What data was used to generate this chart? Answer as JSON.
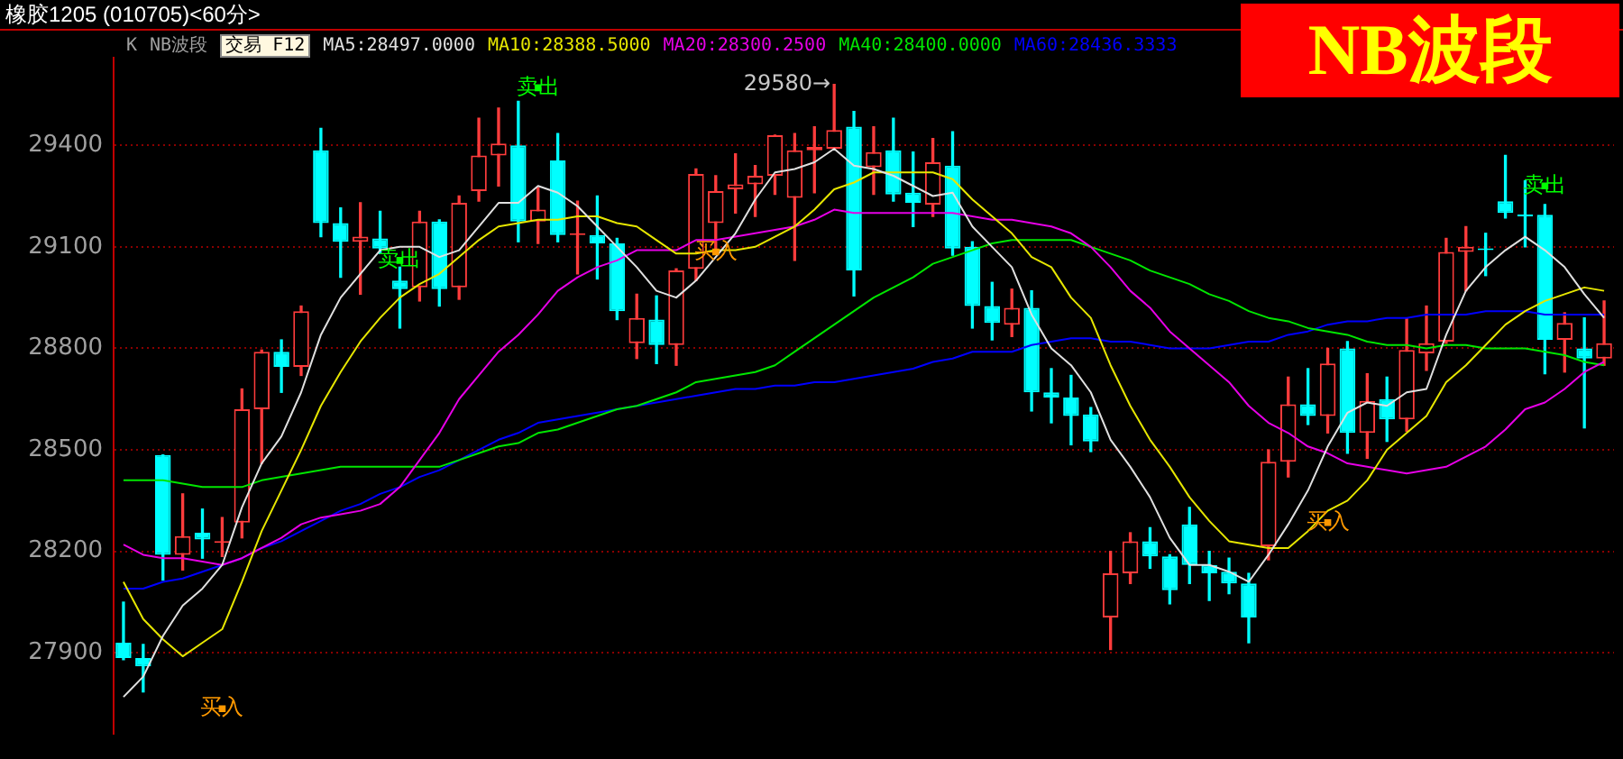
{
  "chart_data": {
    "type": "candlestick",
    "title": "橡胶1205 (010705)<60分>",
    "subtitle": "NB波段",
    "categories": [
      null,
      null,
      null,
      null,
      null,
      null,
      null,
      null,
      null,
      null,
      null,
      null,
      null,
      null,
      null,
      null,
      null,
      null,
      null,
      null,
      null,
      null,
      null,
      null,
      null,
      null,
      null,
      null,
      null,
      null,
      null,
      null,
      null,
      null,
      null,
      null,
      null,
      null,
      null,
      null,
      null,
      null,
      null,
      null,
      null,
      null,
      null,
      null,
      null,
      null,
      null,
      null,
      null,
      null,
      null,
      null,
      null,
      null,
      null,
      null,
      null,
      null,
      null,
      null,
      null,
      null,
      null,
      null,
      null,
      null,
      null,
      null,
      null,
      null,
      null,
      null
    ],
    "ohlc": [
      [
        27930,
        28050,
        27880,
        27885
      ],
      [
        27885,
        27925,
        27785,
        27860
      ],
      [
        28485,
        28485,
        28115,
        28190
      ],
      [
        28190,
        28370,
        28145,
        28245
      ],
      [
        28255,
        28325,
        28180,
        28235
      ],
      [
        28225,
        28300,
        28185,
        28230
      ],
      [
        28285,
        28680,
        28240,
        28620
      ],
      [
        28620,
        28795,
        28460,
        28790
      ],
      [
        28790,
        28825,
        28670,
        28745
      ],
      [
        28745,
        28925,
        28720,
        28910
      ],
      [
        29385,
        29450,
        29130,
        29170
      ],
      [
        29170,
        29215,
        29010,
        29115
      ],
      [
        29115,
        29230,
        28960,
        29130
      ],
      [
        29125,
        29205,
        29080,
        29095
      ],
      [
        29000,
        29040,
        28860,
        28975
      ],
      [
        28980,
        29205,
        28940,
        29175
      ],
      [
        29175,
        29180,
        28925,
        28975
      ],
      [
        28980,
        29250,
        28945,
        29230
      ],
      [
        29265,
        29480,
        29235,
        29370
      ],
      [
        29370,
        29510,
        29280,
        29405
      ],
      [
        29400,
        29530,
        29115,
        29175
      ],
      [
        29175,
        29275,
        29110,
        29210
      ],
      [
        29355,
        29435,
        29115,
        29135
      ],
      [
        29135,
        29235,
        29020,
        29140
      ],
      [
        29135,
        29250,
        29005,
        29110
      ],
      [
        29110,
        29125,
        28885,
        28910
      ],
      [
        28815,
        28960,
        28770,
        28890
      ],
      [
        28885,
        28955,
        28755,
        28810
      ],
      [
        28810,
        29035,
        28750,
        29030
      ],
      [
        29035,
        29330,
        29000,
        29315
      ],
      [
        29170,
        29310,
        29095,
        29265
      ],
      [
        29270,
        29375,
        29200,
        29285
      ],
      [
        29285,
        29340,
        29190,
        29310
      ],
      [
        29310,
        29430,
        29255,
        29430
      ],
      [
        29245,
        29435,
        29060,
        29385
      ],
      [
        29385,
        29455,
        29260,
        29395
      ],
      [
        29390,
        29580,
        29390,
        29445
      ],
      [
        29455,
        29500,
        28955,
        29030
      ],
      [
        29335,
        29455,
        29255,
        29380
      ],
      [
        29385,
        29480,
        29235,
        29255
      ],
      [
        29260,
        29380,
        29160,
        29230
      ],
      [
        29225,
        29420,
        29190,
        29350
      ],
      [
        29340,
        29440,
        29075,
        29095
      ],
      [
        29100,
        29115,
        28860,
        28925
      ],
      [
        28925,
        28995,
        28825,
        28875
      ],
      [
        28870,
        28975,
        28835,
        28920
      ],
      [
        28920,
        28970,
        28615,
        28670
      ],
      [
        28670,
        28740,
        28580,
        28655
      ],
      [
        28655,
        28720,
        28515,
        28600
      ],
      [
        28605,
        28625,
        28495,
        28525
      ],
      [
        28005,
        28200,
        27910,
        28135
      ],
      [
        28135,
        28255,
        28105,
        28230
      ],
      [
        28230,
        28270,
        28150,
        28185
      ],
      [
        28185,
        28190,
        28045,
        28085
      ],
      [
        28280,
        28330,
        28105,
        28160
      ],
      [
        28160,
        28200,
        28055,
        28135
      ],
      [
        28140,
        28180,
        28075,
        28105
      ],
      [
        28105,
        28135,
        27930,
        28005
      ],
      [
        28215,
        28500,
        28175,
        28465
      ],
      [
        28465,
        28715,
        28420,
        28635
      ],
      [
        28635,
        28740,
        28575,
        28600
      ],
      [
        28600,
        28800,
        28550,
        28755
      ],
      [
        28800,
        28820,
        28490,
        28550
      ],
      [
        28550,
        28725,
        28475,
        28645
      ],
      [
        28650,
        28715,
        28525,
        28590
      ],
      [
        28590,
        28890,
        28555,
        28795
      ],
      [
        28785,
        28925,
        28735,
        28815
      ],
      [
        28820,
        29125,
        28815,
        29085
      ],
      [
        29085,
        29160,
        28970,
        29100
      ],
      [
        29095,
        29140,
        29015,
        29090
      ],
      [
        29235,
        29370,
        29185,
        29200
      ],
      [
        29195,
        29295,
        29100,
        29190
      ],
      [
        29195,
        29225,
        28725,
        28825
      ],
      [
        28825,
        28905,
        28730,
        28875
      ],
      [
        28800,
        28890,
        28565,
        28770
      ],
      [
        28770,
        28940,
        28750,
        28815
      ]
    ],
    "colors": [
      "#00ffff",
      "#00ffff",
      "#00ffff",
      "#ff3c3c",
      "#00ffff",
      "#ff3c3c",
      "#ff3c3c",
      "#ff3c3c",
      "#00ffff",
      "#ff3c3c",
      "#00ffff",
      "#00ffff",
      "#ff3c3c",
      "#00ffff",
      "#00ffff",
      "#ff3c3c",
      "#00ffff",
      "#ff3c3c",
      "#ff3c3c",
      "#ff3c3c",
      "#00ffff",
      "#ff3c3c",
      "#00ffff",
      "#ff3c3c",
      "#00ffff",
      "#00ffff",
      "#ff3c3c",
      "#00ffff",
      "#ff3c3c",
      "#ff3c3c",
      "#ff3c3c",
      "#ff3c3c",
      "#ff3c3c",
      "#ff3c3c",
      "#ff3c3c",
      "#ff3c3c",
      "#ff3c3c",
      "#00ffff",
      "#ff3c3c",
      "#00ffff",
      "#00ffff",
      "#ff3c3c",
      "#00ffff",
      "#00ffff",
      "#00ffff",
      "#ff3c3c",
      "#00ffff",
      "#00ffff",
      "#00ffff",
      "#00ffff",
      "#ff3c3c",
      "#ff3c3c",
      "#00ffff",
      "#00ffff",
      "#00ffff",
      "#00ffff",
      "#00ffff",
      "#00ffff",
      "#ff3c3c",
      "#ff3c3c",
      "#00ffff",
      "#ff3c3c",
      "#00ffff",
      "#ff3c3c",
      "#00ffff",
      "#ff3c3c",
      "#ff3c3c",
      "#ff3c3c",
      "#ff3c3c",
      "#00ffff",
      "#00ffff",
      "#00ffff",
      "#00ffff",
      "#ff3c3c",
      "#00ffff",
      "#ff3c3c"
    ],
    "series": [
      {
        "name": "MA5:28497.0000",
        "type": "line",
        "color": "#e0e0e0",
        "values": [
          27770,
          27830,
          27950,
          28040,
          28090,
          28160,
          28330,
          28460,
          28540,
          28670,
          28840,
          28950,
          29020,
          29090,
          29100,
          29100,
          29070,
          29090,
          29160,
          29230,
          29230,
          29280,
          29260,
          29220,
          29160,
          29100,
          29040,
          28970,
          28950,
          29000,
          29070,
          29140,
          29240,
          29320,
          29330,
          29350,
          29390,
          29340,
          29330,
          29310,
          29280,
          29250,
          29260,
          29160,
          29100,
          29040,
          28900,
          28800,
          28750,
          28670,
          28530,
          28450,
          28360,
          28240,
          28160,
          28160,
          28140,
          28110,
          28190,
          28280,
          28380,
          28510,
          28610,
          28640,
          28630,
          28670,
          28680,
          28840,
          28970,
          29040,
          29090,
          29130,
          29090,
          29040,
          28960,
          28890
        ]
      },
      {
        "name": "MA10:28388.5000",
        "type": "line",
        "color": "#e6e600",
        "values": [
          28110,
          28000,
          27940,
          27890,
          27930,
          27970,
          28110,
          28260,
          28380,
          28500,
          28630,
          28730,
          28820,
          28890,
          28950,
          28990,
          29020,
          29070,
          29120,
          29160,
          29170,
          29180,
          29180,
          29190,
          29190,
          29170,
          29160,
          29120,
          29080,
          29080,
          29090,
          29090,
          29100,
          29130,
          29160,
          29210,
          29270,
          29290,
          29320,
          29320,
          29320,
          29320,
          29300,
          29240,
          29190,
          29140,
          29070,
          29040,
          28950,
          28890,
          28750,
          28630,
          28530,
          28450,
          28360,
          28290,
          28230,
          28220,
          28210,
          28210,
          28260,
          28320,
          28350,
          28410,
          28500,
          28550,
          28600,
          28700,
          28750,
          28810,
          28870,
          28910,
          28940,
          28960,
          28980,
          28970
        ]
      },
      {
        "name": "MA20:28300.2500",
        "type": "line",
        "color": "#e600e6",
        "values": [
          28220,
          28190,
          28180,
          28180,
          28170,
          28160,
          28180,
          28210,
          28240,
          28280,
          28300,
          28310,
          28320,
          28340,
          28390,
          28470,
          28550,
          28650,
          28720,
          28790,
          28840,
          28900,
          28970,
          29010,
          29040,
          29060,
          29090,
          29090,
          29090,
          29120,
          29120,
          29130,
          29140,
          29150,
          29160,
          29180,
          29210,
          29200,
          29200,
          29200,
          29200,
          29200,
          29200,
          29190,
          29180,
          29180,
          29170,
          29160,
          29140,
          29100,
          29040,
          28970,
          28920,
          28850,
          28800,
          28750,
          28700,
          28630,
          28580,
          28550,
          28510,
          28490,
          28460,
          28450,
          28440,
          28430,
          28440,
          28450,
          28480,
          28510,
          28560,
          28620,
          28640,
          28680,
          28730,
          28760
        ]
      },
      {
        "name": "MA40:28400.0000",
        "type": "line",
        "color": "#00e600",
        "values": [
          28410,
          28410,
          28410,
          28400,
          28390,
          28390,
          28390,
          28410,
          28420,
          28430,
          28440,
          28450,
          28450,
          28450,
          28450,
          28450,
          28450,
          28470,
          28490,
          28510,
          28520,
          28550,
          28560,
          28580,
          28600,
          28620,
          28630,
          28650,
          28670,
          28700,
          28710,
          28720,
          28730,
          28750,
          28790,
          28830,
          28870,
          28910,
          28950,
          28980,
          29010,
          29050,
          29070,
          29090,
          29110,
          29120,
          29120,
          29120,
          29120,
          29100,
          29080,
          29060,
          29030,
          29010,
          28990,
          28960,
          28940,
          28910,
          28890,
          28880,
          28860,
          28850,
          28840,
          28820,
          28810,
          28810,
          28800,
          28810,
          28810,
          28800,
          28800,
          28800,
          28790,
          28780,
          28760,
          28750
        ]
      },
      {
        "name": "MA60:28436.3333",
        "type": "line",
        "color": "#0000ff",
        "values": [
          28090,
          28090,
          28110,
          28120,
          28140,
          28160,
          28180,
          28210,
          28230,
          28260,
          28290,
          28320,
          28340,
          28370,
          28390,
          28420,
          28440,
          28470,
          28500,
          28530,
          28550,
          28580,
          28590,
          28600,
          28610,
          28620,
          28630,
          28640,
          28650,
          28660,
          28670,
          28680,
          28680,
          28690,
          28690,
          28700,
          28700,
          28710,
          28720,
          28730,
          28740,
          28760,
          28770,
          28790,
          28790,
          28790,
          28810,
          28820,
          28830,
          28830,
          28820,
          28820,
          28810,
          28800,
          28800,
          28800,
          28810,
          28820,
          28820,
          28840,
          28850,
          28870,
          28880,
          28880,
          28890,
          28890,
          28900,
          28900,
          28900,
          28910,
          28910,
          28910,
          28900,
          28900,
          28900,
          28900
        ]
      },
      {
        "name": "卖出",
        "type": "scatter",
        "color": "#00ff00",
        "marker": "square",
        "values": [
          null,
          null,
          null,
          null,
          null,
          null,
          null,
          null,
          null,
          null,
          null,
          null,
          null,
          null,
          29060,
          null,
          null,
          null,
          null,
          null,
          null,
          29570,
          null,
          null,
          null,
          null,
          null,
          null,
          null,
          null,
          null,
          null,
          null,
          null,
          null,
          null,
          null,
          null,
          null,
          null,
          null,
          null,
          null,
          null,
          null,
          null,
          null,
          null,
          null,
          null,
          null,
          null,
          null,
          null,
          null,
          null,
          null,
          null,
          null,
          null,
          null,
          null,
          null,
          null,
          null,
          null,
          null,
          null,
          null,
          null,
          null,
          null,
          29280,
          null,
          null,
          null
        ]
      },
      {
        "name": "买入",
        "type": "scatter",
        "color": "#ff9900",
        "marker": "square",
        "values": [
          null,
          null,
          null,
          null,
          null,
          27735,
          null,
          null,
          null,
          null,
          null,
          null,
          null,
          null,
          null,
          null,
          null,
          null,
          null,
          null,
          null,
          null,
          null,
          null,
          null,
          null,
          null,
          null,
          null,
          null,
          29085,
          null,
          null,
          null,
          null,
          null,
          null,
          null,
          null,
          null,
          null,
          null,
          null,
          null,
          null,
          null,
          null,
          null,
          null,
          null,
          null,
          null,
          null,
          null,
          null,
          null,
          null,
          null,
          null,
          null,
          null,
          28285,
          null,
          null,
          null,
          null,
          null,
          null,
          null,
          null,
          null,
          null,
          null,
          null,
          null,
          null
        ]
      }
    ],
    "annotations": [
      "K",
      "NB波段",
      "交易 F12",
      "29580→"
    ],
    "ylim": [
      27660,
      29660
    ],
    "yticks": [
      27900,
      28200,
      28500,
      28800,
      29100,
      29400
    ],
    "grid": "y",
    "tick_labels": "y",
    "legend": "top"
  }
}
